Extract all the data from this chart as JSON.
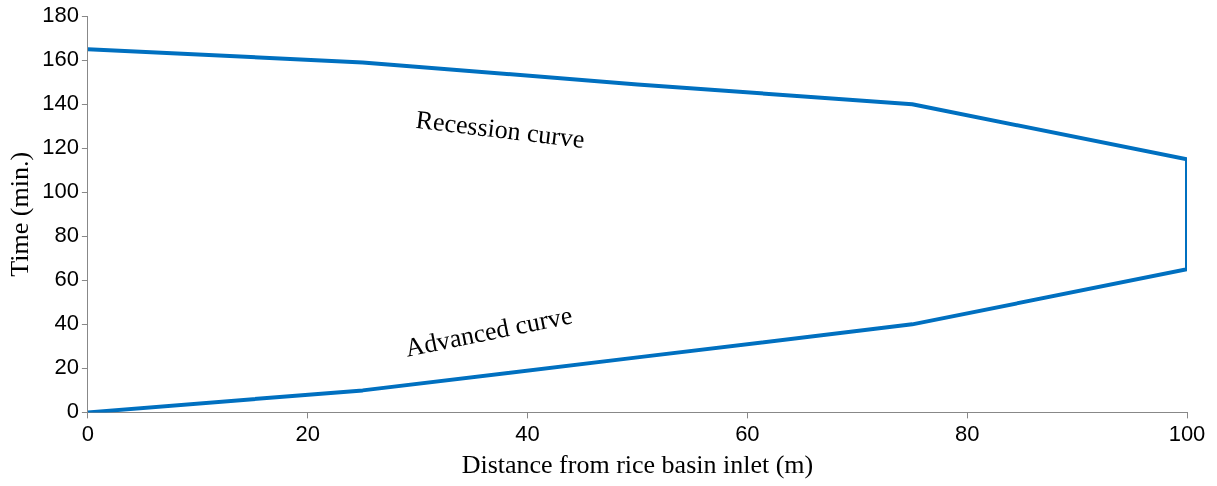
{
  "chart_data": {
    "type": "line",
    "xlabel": "Distance from rice basin inlet (m)",
    "ylabel": "Time (min.)",
    "x": [
      0,
      25,
      50,
      75,
      100,
      100,
      75,
      50,
      25,
      0
    ],
    "series": [
      {
        "color": "#0070c0",
        "values": [
          0,
          10,
          25,
          40,
          65,
          115,
          140,
          149,
          159,
          165
        ]
      }
    ],
    "xlim": [
      0,
      100
    ],
    "xticks": [
      0,
      20,
      40,
      60,
      80,
      100
    ],
    "ylim": [
      0,
      180
    ],
    "yticks": [
      0,
      20,
      40,
      60,
      80,
      100,
      120,
      140,
      160,
      180
    ],
    "grid": false,
    "legend": false,
    "marker": "none",
    "line_style": "solid",
    "annotations": [
      "Recession curve",
      "Advanced curve"
    ]
  }
}
